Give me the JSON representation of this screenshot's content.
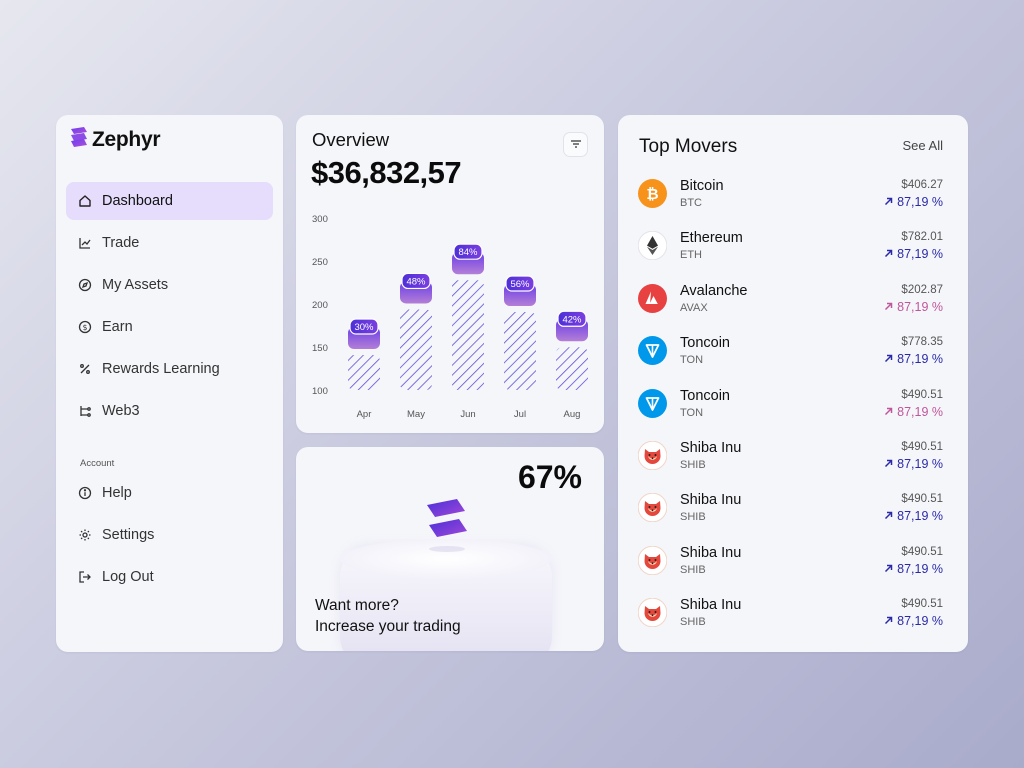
{
  "brand": {
    "name": "Zephyr"
  },
  "sidebar": {
    "items": [
      {
        "label": "Dashboard",
        "icon": "home-icon",
        "active": true
      },
      {
        "label": "Trade",
        "icon": "chart-line-icon",
        "active": false
      },
      {
        "label": "My Assets",
        "icon": "compass-icon",
        "active": false
      },
      {
        "label": "Earn",
        "icon": "dollar-circle-icon",
        "active": false
      },
      {
        "label": "Rewards Learning",
        "icon": "percent-icon",
        "active": false
      },
      {
        "label": "Web3",
        "icon": "hierarchy-icon",
        "active": false
      }
    ],
    "account_label": "Account",
    "account_items": [
      {
        "label": "Help",
        "icon": "info-icon"
      },
      {
        "label": "Settings",
        "icon": "gear-icon"
      },
      {
        "label": "Log Out",
        "icon": "logout-icon"
      }
    ]
  },
  "overview": {
    "title": "Overview",
    "amount": "$36,832,57",
    "filter_icon": "filter-icon"
  },
  "chart_data": {
    "type": "bar",
    "categories": [
      "Apr",
      "May",
      "Jun",
      "Jul",
      "Aug"
    ],
    "values": [
      143,
      196,
      230,
      193,
      152
    ],
    "labels": [
      "30%",
      "48%",
      "84%",
      "56%",
      "42%"
    ],
    "yticks": [
      100,
      150,
      200,
      250,
      300
    ],
    "ylim": [
      100,
      300
    ],
    "grid": false
  },
  "promo": {
    "percent": "67%",
    "line1": "Want more?",
    "line2": "Increase your trading"
  },
  "movers": {
    "title": "Top Movers",
    "see_all": "See All",
    "colors": {
      "up": "#2a2aa8",
      "pink": "#c0569a"
    },
    "rows": [
      {
        "name": "Bitcoin",
        "symbol": "BTC",
        "price": "$406.27",
        "change": "87,19 %",
        "trend": "up",
        "icon": "bitcoin-icon",
        "color": "#f7931a"
      },
      {
        "name": "Ethereum",
        "symbol": "ETH",
        "price": "$782.01",
        "change": "87,19 %",
        "trend": "up",
        "icon": "ethereum-icon",
        "color": "#ffffff"
      },
      {
        "name": "Avalanche",
        "symbol": "AVAX",
        "price": "$202.87",
        "change": "87,19 %",
        "trend": "pink",
        "icon": "avalanche-icon",
        "color": "#e84142"
      },
      {
        "name": "Toncoin",
        "symbol": "TON",
        "price": "$778.35",
        "change": "87,19 %",
        "trend": "up",
        "icon": "toncoin-icon",
        "color": "#0098ea"
      },
      {
        "name": "Toncoin",
        "symbol": "TON",
        "price": "$490.51",
        "change": "87,19 %",
        "trend": "pink",
        "icon": "toncoin-icon",
        "color": "#0098ea"
      },
      {
        "name": "Shiba Inu",
        "symbol": "SHIB",
        "price": "$490.51",
        "change": "87,19 %",
        "trend": "up",
        "icon": "shiba-inu-icon",
        "color": "#e4473c"
      },
      {
        "name": "Shiba Inu",
        "symbol": "SHIB",
        "price": "$490.51",
        "change": "87,19 %",
        "trend": "up",
        "icon": "shiba-inu-icon",
        "color": "#e4473c"
      },
      {
        "name": "Shiba Inu",
        "symbol": "SHIB",
        "price": "$490.51",
        "change": "87,19 %",
        "trend": "up",
        "icon": "shiba-inu-icon",
        "color": "#e4473c"
      },
      {
        "name": "Shiba Inu",
        "symbol": "SHIB",
        "price": "$490.51",
        "change": "87,19 %",
        "trend": "up",
        "icon": "shiba-inu-icon",
        "color": "#e4473c"
      }
    ]
  }
}
